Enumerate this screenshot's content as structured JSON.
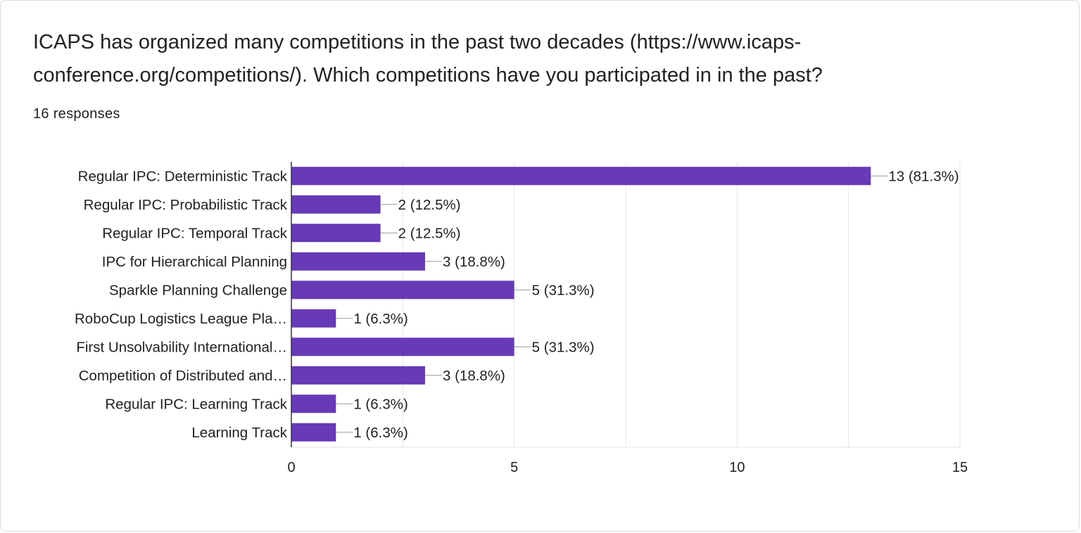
{
  "question": {
    "title": "ICAPS has organized many competitions in the past two decades (https://www.icaps-conference.org/competitions/). Which competitions have you participated in in the past?",
    "responses": "16 responses"
  },
  "chart_data": {
    "type": "bar",
    "orientation": "horizontal",
    "title": "",
    "xlabel": "",
    "ylabel": "",
    "categories": [
      "Regular IPC: Deterministic Track",
      "Regular IPC: Probabilistic Track",
      "Regular IPC: Temporal Track",
      "IPC for Hierarchical Planning",
      "Sparkle Planning Challenge",
      "RoboCup Logistics League Pla…",
      "First Unsolvability International…",
      "Competition of Distributed and…",
      "Regular IPC: Learning Track",
      "Learning Track"
    ],
    "values": [
      13,
      2,
      2,
      3,
      5,
      1,
      5,
      3,
      1,
      1
    ],
    "data_labels": [
      "13 (81.3%)",
      "2 (12.5%)",
      "2 (12.5%)",
      "3 (18.8%)",
      "5 (31.3%)",
      "1 (6.3%)",
      "5 (31.3%)",
      "3 (18.8%)",
      "1 (6.3%)",
      "1 (6.3%)"
    ],
    "xlim": [
      0,
      15
    ],
    "x_ticks": [
      0,
      5,
      10,
      15
    ],
    "x_tick_labels": [
      "0",
      "5",
      "10",
      "15"
    ],
    "grid": true,
    "bar_color": "#673ab7"
  }
}
